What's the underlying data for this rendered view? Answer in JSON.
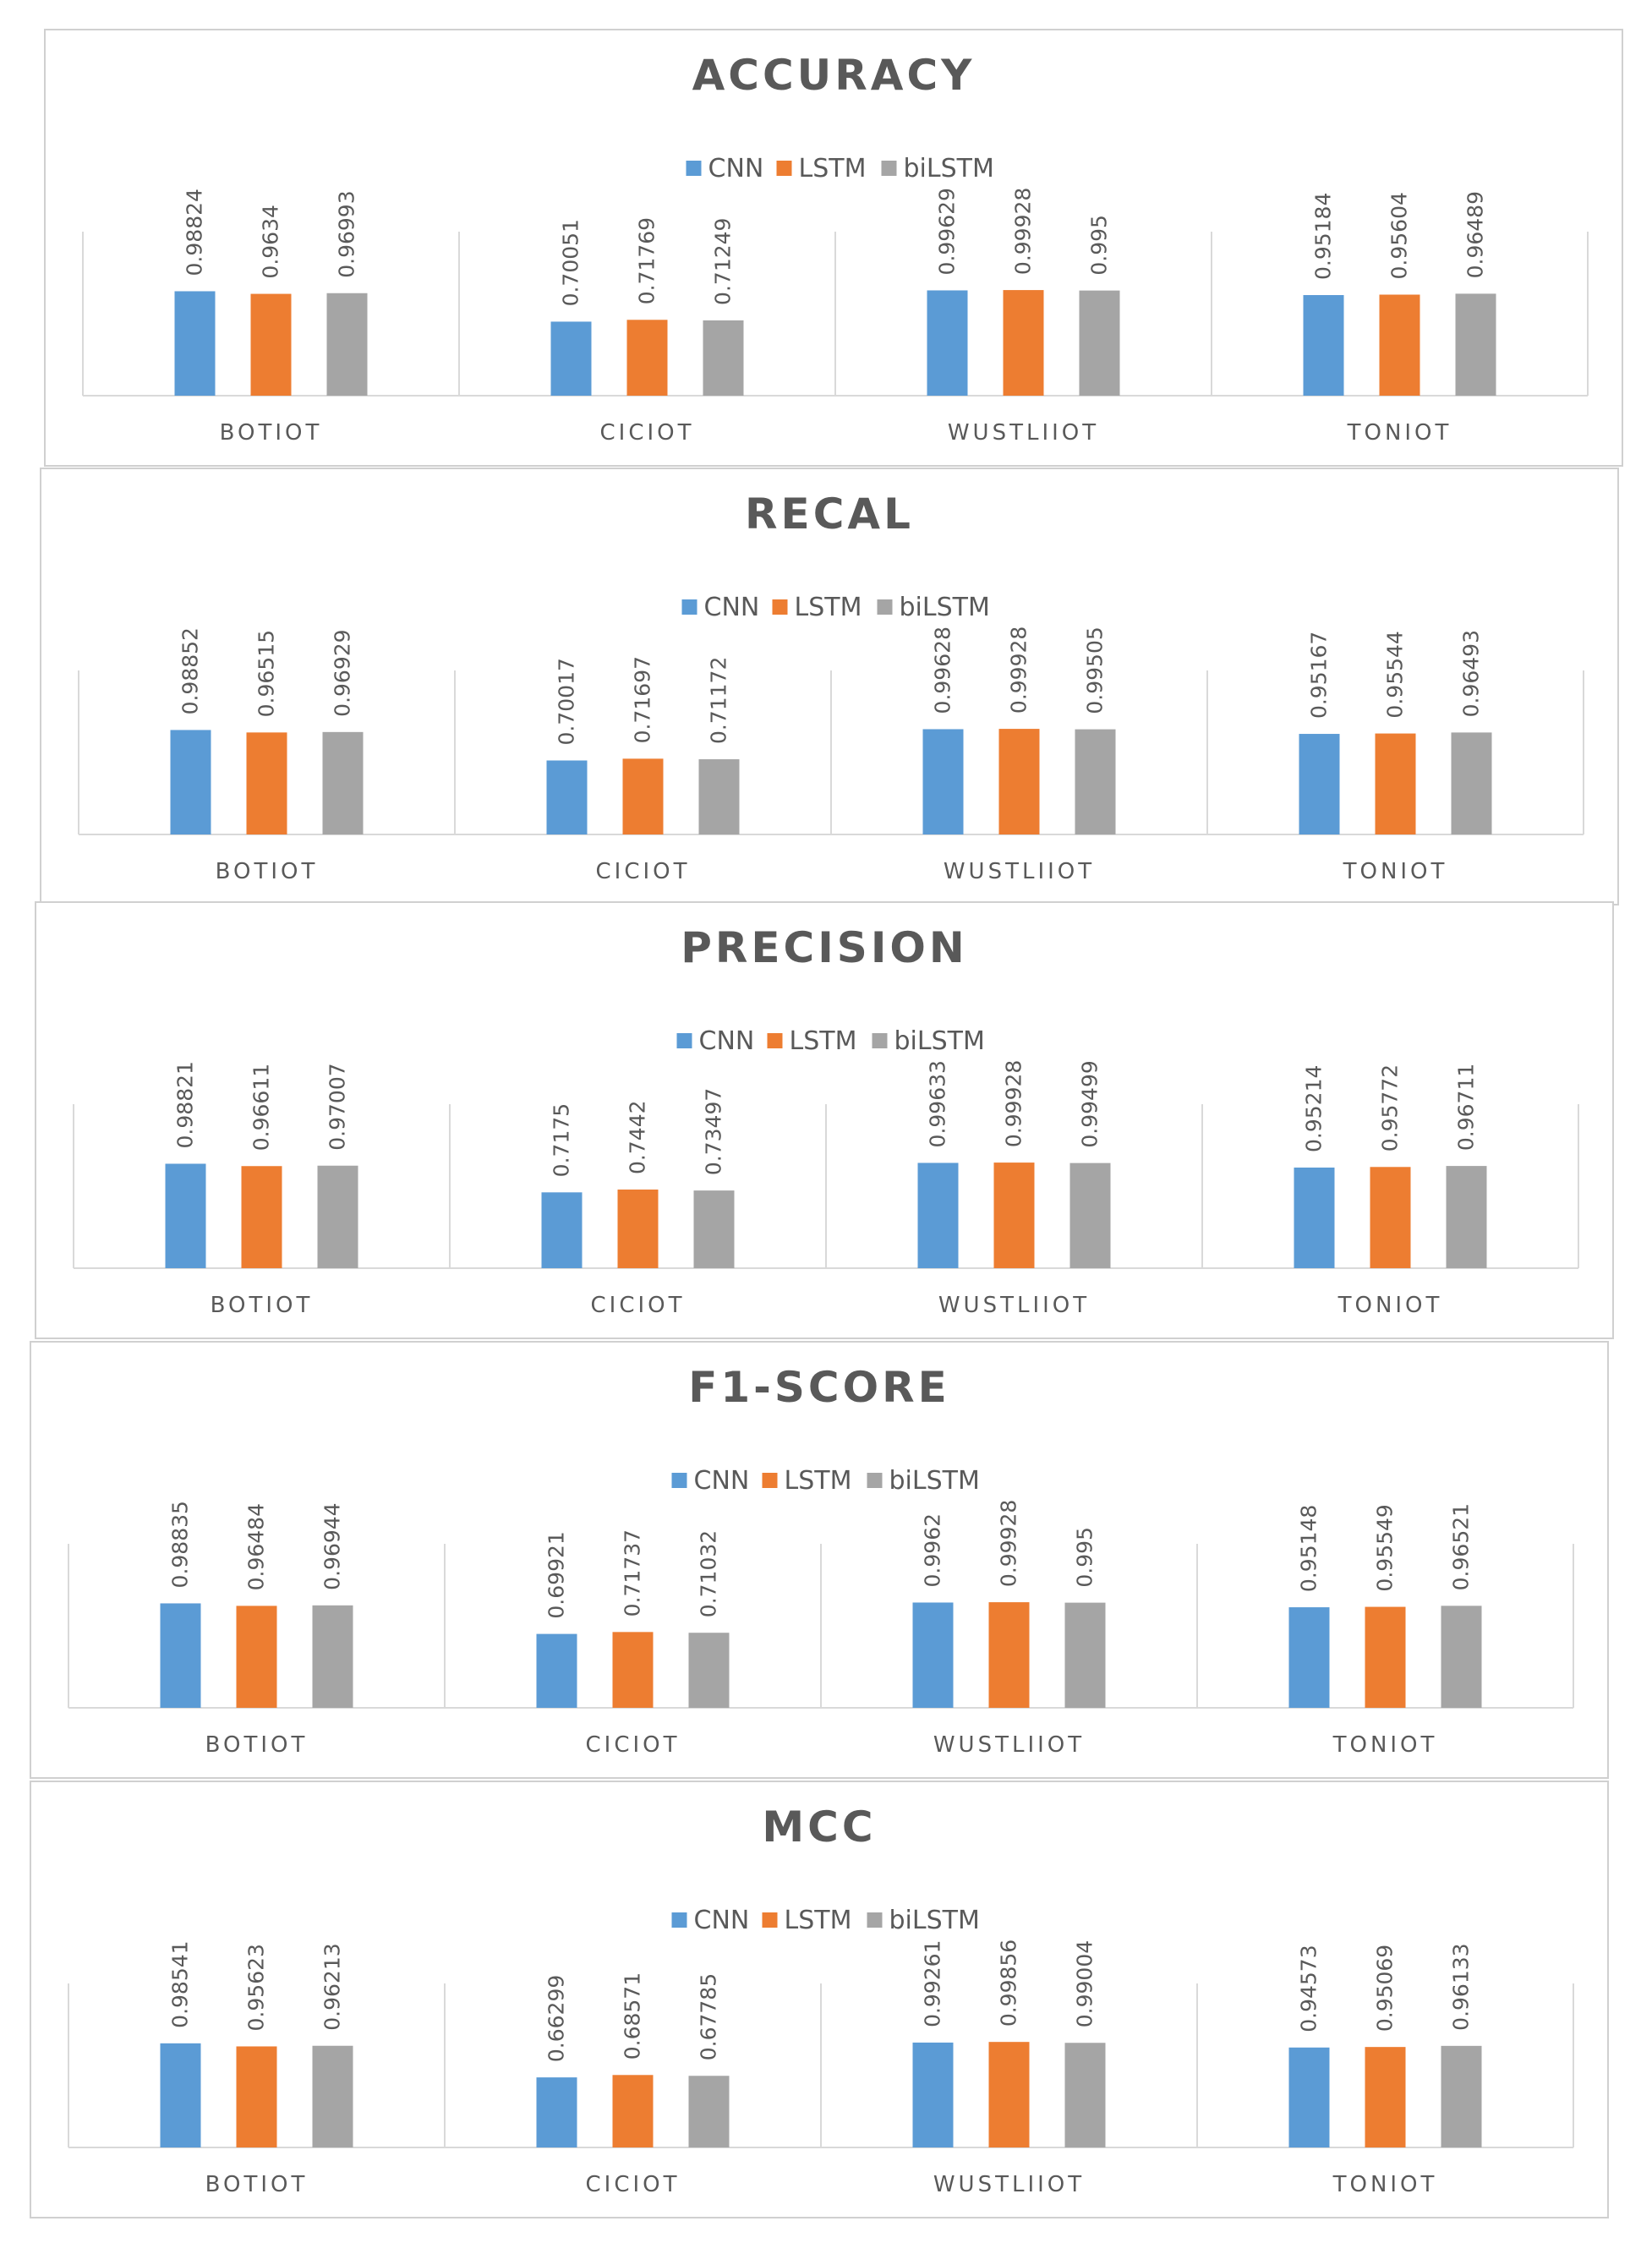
{
  "chart_data": [
    {
      "type": "bar",
      "title": "ACCURACY",
      "categories": [
        "BOTIOT",
        "CICIOT",
        "WUSTLIIOT",
        "TONIOT"
      ],
      "series": [
        {
          "name": "CNN",
          "color": "#5b9bd5",
          "values": [
            0.98824,
            0.70051,
            0.99629,
            0.95184
          ]
        },
        {
          "name": "LSTM",
          "color": "#ed7d31",
          "values": [
            0.9634,
            0.71769,
            0.99928,
            0.95604
          ]
        },
        {
          "name": "biLSTM",
          "color": "#a5a5a5",
          "values": [
            0.96993,
            0.71249,
            0.995,
            0.96489
          ]
        }
      ],
      "labels": [
        [
          "0.98824",
          "0.70051",
          "0.99629",
          "0.95184"
        ],
        [
          "0.9634",
          "0.71769",
          "0.99928",
          "0.95604"
        ],
        [
          "0.96993",
          "0.71249",
          "0.995",
          "0.96489"
        ]
      ],
      "ylim": [
        0,
        1
      ],
      "legend": "top-center",
      "grid": false
    },
    {
      "type": "bar",
      "title": "RECAL",
      "categories": [
        "BOTIOT",
        "CICIOT",
        "WUSTLIIOT",
        "TONIOT"
      ],
      "series": [
        {
          "name": "CNN",
          "color": "#5b9bd5",
          "values": [
            0.98852,
            0.70017,
            0.99628,
            0.95167
          ]
        },
        {
          "name": "LSTM",
          "color": "#ed7d31",
          "values": [
            0.96515,
            0.71697,
            0.99928,
            0.95544
          ]
        },
        {
          "name": "biLSTM",
          "color": "#a5a5a5",
          "values": [
            0.96929,
            0.71172,
            0.99505,
            0.96493
          ]
        }
      ],
      "labels": [
        [
          "0.98852",
          "0.70017",
          "0.99628",
          "0.95167"
        ],
        [
          "0.96515",
          "0.71697",
          "0.99928",
          "0.95544"
        ],
        [
          "0.96929",
          "0.71172",
          "0.99505",
          "0.96493"
        ]
      ],
      "ylim": [
        0,
        1
      ],
      "legend": "top-center",
      "grid": false
    },
    {
      "type": "bar",
      "title": "PRECISION",
      "categories": [
        "BOTIOT",
        "CICIOT",
        "WUSTLIIOT",
        "TONIOT"
      ],
      "series": [
        {
          "name": "CNN",
          "color": "#5b9bd5",
          "values": [
            0.98821,
            0.7175,
            0.99633,
            0.95214
          ]
        },
        {
          "name": "LSTM",
          "color": "#ed7d31",
          "values": [
            0.96611,
            0.7442,
            0.99928,
            0.95772
          ]
        },
        {
          "name": "biLSTM",
          "color": "#a5a5a5",
          "values": [
            0.97007,
            0.73497,
            0.99499,
            0.96711
          ]
        }
      ],
      "labels": [
        [
          "0.98821",
          "0.7175",
          "0.99633",
          "0.95214"
        ],
        [
          "0.96611",
          "0.7442",
          "0.99928",
          "0.95772"
        ],
        [
          "0.97007",
          "0.73497",
          "0.99499",
          "0.96711"
        ]
      ],
      "ylim": [
        0,
        1
      ],
      "legend": "top-center",
      "grid": false
    },
    {
      "type": "bar",
      "title": "F1-SCORE",
      "categories": [
        "BOTIOT",
        "CICIOT",
        "WUSTLIIOT",
        "TONIOT"
      ],
      "series": [
        {
          "name": "CNN",
          "color": "#5b9bd5",
          "values": [
            0.98835,
            0.69921,
            0.9962,
            0.95148
          ]
        },
        {
          "name": "LSTM",
          "color": "#ed7d31",
          "values": [
            0.96484,
            0.71737,
            0.99928,
            0.95549
          ]
        },
        {
          "name": "biLSTM",
          "color": "#a5a5a5",
          "values": [
            0.96944,
            0.71032,
            0.995,
            0.96521
          ]
        }
      ],
      "labels": [
        [
          "0.98835",
          "0.69921",
          "0.9962",
          "0.95148"
        ],
        [
          "0.96484",
          "0.71737",
          "0.99928",
          "0.95549"
        ],
        [
          "0.96944",
          "0.71032",
          "0.995",
          "0.96521"
        ]
      ],
      "ylim": [
        0,
        1
      ],
      "legend": "top-center",
      "grid": false
    },
    {
      "type": "bar",
      "title": "MCC",
      "categories": [
        "BOTIOT",
        "CICIOT",
        "WUSTLIIOT",
        "TONIOT"
      ],
      "series": [
        {
          "name": "CNN",
          "color": "#5b9bd5",
          "values": [
            0.98541,
            0.66299,
            0.99261,
            0.94573
          ]
        },
        {
          "name": "LSTM",
          "color": "#ed7d31",
          "values": [
            0.95623,
            0.68571,
            0.99856,
            0.95069
          ]
        },
        {
          "name": "biLSTM",
          "color": "#a5a5a5",
          "values": [
            0.96213,
            0.67785,
            0.99004,
            0.96133
          ]
        }
      ],
      "labels": [
        [
          "0.98541",
          "0.66299",
          "0.99261",
          "0.94573"
        ],
        [
          "0.95623",
          "0.68571",
          "0.99856",
          "0.95069"
        ],
        [
          "0.96213",
          "0.67785",
          "0.99004",
          "0.96133"
        ]
      ],
      "ylim": [
        0,
        1
      ],
      "legend": "top-center",
      "grid": false
    }
  ]
}
